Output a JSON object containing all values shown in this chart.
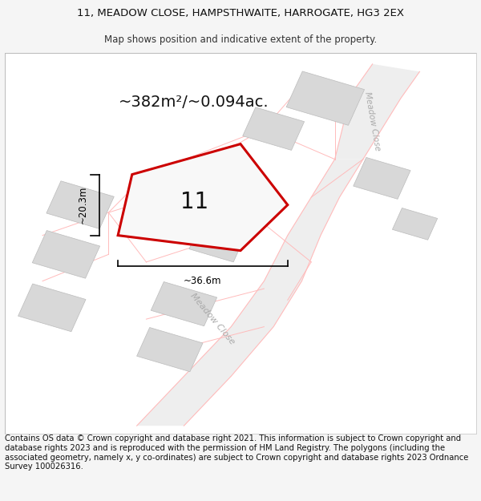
{
  "title_line1": "11, MEADOW CLOSE, HAMPSTHWAITE, HARROGATE, HG3 2EX",
  "title_line2": "Map shows position and indicative extent of the property.",
  "area_label": "~382m²/~0.094ac.",
  "plot_number": "11",
  "width_label": "~36.6m",
  "height_label": "~20.3m",
  "footer_text": "Contains OS data © Crown copyright and database right 2021. This information is subject to Crown copyright and database rights 2023 and is reproduced with the permission of HM Land Registry. The polygons (including the associated geometry, namely x, y co-ordinates) are subject to Crown copyright and database rights 2023 Ordnance Survey 100026316.",
  "bg_color": "#f5f5f5",
  "map_bg": "#ffffff",
  "plot_fill": "#f0f0f0",
  "plot_edge": "#cc0000",
  "building_fill": "#d8d8d8",
  "building_edge": "#bbbbbb",
  "plot_line_color": "#ffbbbb",
  "road_label_color": "#aaaaaa",
  "dim_line_color": "#000000",
  "title_fontsize": 9.5,
  "subtitle_fontsize": 8.5,
  "area_fontsize": 14,
  "plot_num_fontsize": 20,
  "dim_fontsize": 8.5,
  "footer_fontsize": 7.2
}
